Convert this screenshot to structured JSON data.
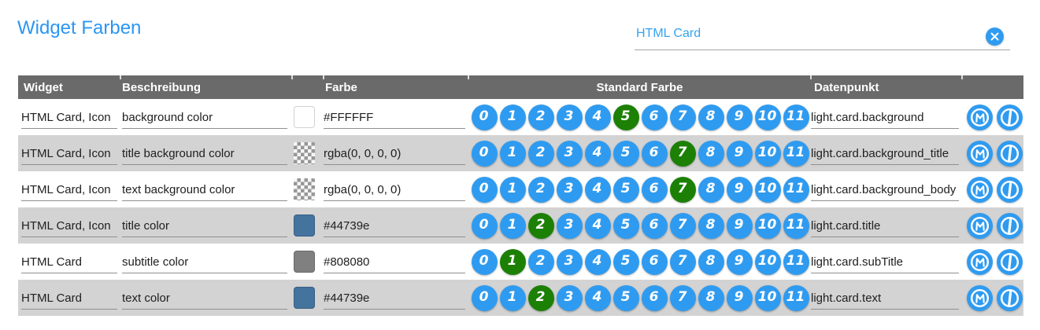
{
  "header": {
    "title": "Widget Farben"
  },
  "search": {
    "value": "HTML Card"
  },
  "colors": {
    "accent_blue": "#2f9bf0",
    "selected_green": "#1c8005",
    "title_blue": "#2b96f3",
    "search_text_blue": "#35a3ef",
    "table_header_bg": "#6a6a6a",
    "alt_row_bg": "#d3d3d3"
  },
  "table": {
    "columns": {
      "widget": "Widget",
      "beschreibung": "Beschreibung",
      "farbe": "Farbe",
      "standard_farbe": "Standard Farbe",
      "datenpunkt": "Datenpunkt"
    },
    "palette_indices": [
      "0",
      "1",
      "2",
      "3",
      "4",
      "5",
      "6",
      "7",
      "8",
      "9",
      "10",
      "11"
    ],
    "row_action_icons": [
      "m-circle-icon",
      "power-circle-icon"
    ],
    "rows": [
      {
        "widget": "HTML Card, Icon",
        "beschreibung": "background color",
        "swatch_type": "color",
        "swatch_color": "#FFFFFF",
        "farbe": "#FFFFFF",
        "selected_index": 5,
        "datenpunkt": "light.card.background"
      },
      {
        "widget": "HTML Card, Icon",
        "beschreibung": "title background color",
        "swatch_type": "checker",
        "swatch_color": null,
        "farbe": "rgba(0, 0, 0, 0)",
        "selected_index": 7,
        "datenpunkt": "light.card.background_title"
      },
      {
        "widget": "HTML Card, Icon",
        "beschreibung": "text background color",
        "swatch_type": "checker",
        "swatch_color": null,
        "farbe": "rgba(0, 0, 0, 0)",
        "selected_index": 7,
        "datenpunkt": "light.card.background_body"
      },
      {
        "widget": "HTML Card, Icon",
        "beschreibung": "title color",
        "swatch_type": "color",
        "swatch_color": "#44739e",
        "farbe": "#44739e",
        "selected_index": 2,
        "datenpunkt": "light.card.title"
      },
      {
        "widget": "HTML Card",
        "beschreibung": "subtitle color",
        "swatch_type": "color",
        "swatch_color": "#808080",
        "farbe": "#808080",
        "selected_index": 1,
        "datenpunkt": "light.card.subTitle"
      },
      {
        "widget": "HTML Card",
        "beschreibung": "text color",
        "swatch_type": "color",
        "swatch_color": "#44739e",
        "farbe": "#44739e",
        "selected_index": 2,
        "datenpunkt": "light.card.text"
      }
    ]
  }
}
